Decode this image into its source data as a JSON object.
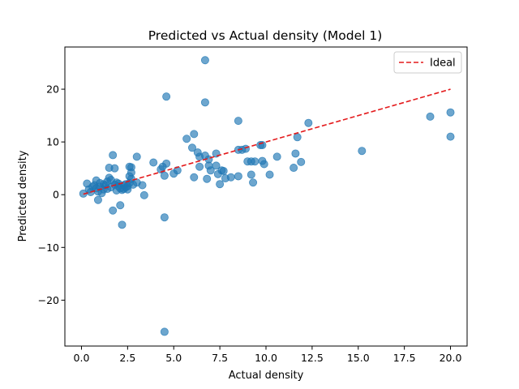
{
  "chart_data": {
    "type": "scatter",
    "title": "Predicted vs Actual density (Model 1)",
    "xlabel": "Actual density",
    "ylabel": "Predicted density",
    "xlim": [
      -0.9,
      20.9
    ],
    "ylim": [
      -28.7,
      28.0
    ],
    "xticks": [
      0.0,
      2.5,
      5.0,
      7.5,
      10.0,
      12.5,
      15.0,
      17.5,
      20.0
    ],
    "xtick_labels": [
      "0.0",
      "2.5",
      "5.0",
      "7.5",
      "10.0",
      "12.5",
      "15.0",
      "17.5",
      "20.0"
    ],
    "yticks": [
      -20,
      -10,
      0,
      10,
      20
    ],
    "ytick_labels": [
      "−20",
      "−10",
      "0",
      "10",
      "20"
    ],
    "grid": false,
    "legend": {
      "placement": "top-right",
      "entries": [
        {
          "label": "Ideal"
        }
      ]
    },
    "colors": {
      "points": "#1f77b4",
      "ideal": "#e41a1c"
    },
    "ideal_line": {
      "name": "Ideal",
      "x": [
        0.1,
        20.0
      ],
      "y": [
        0.1,
        20.0
      ]
    },
    "series": [
      {
        "points": [
          [
            0.1,
            0.2
          ],
          [
            0.3,
            2.1
          ],
          [
            0.4,
            1.0
          ],
          [
            0.5,
            0.5
          ],
          [
            0.6,
            1.5
          ],
          [
            0.7,
            1.8
          ],
          [
            0.8,
            2.7
          ],
          [
            0.8,
            1.2
          ],
          [
            0.9,
            0.6
          ],
          [
            0.9,
            -1.0
          ],
          [
            1.0,
            2.2
          ],
          [
            1.0,
            1.5
          ],
          [
            1.1,
            0.3
          ],
          [
            1.2,
            2.0
          ],
          [
            1.2,
            1.0
          ],
          [
            1.3,
            1.8
          ],
          [
            1.4,
            2.5
          ],
          [
            1.4,
            1.1
          ],
          [
            1.5,
            3.2
          ],
          [
            1.5,
            5.1
          ],
          [
            1.6,
            2.8
          ],
          [
            1.6,
            1.4
          ],
          [
            1.7,
            7.5
          ],
          [
            1.7,
            -3.0
          ],
          [
            1.8,
            5.0
          ],
          [
            1.8,
            1.9
          ],
          [
            1.9,
            2.3
          ],
          [
            1.9,
            0.8
          ],
          [
            2.0,
            1.6
          ],
          [
            2.0,
            2.1
          ],
          [
            2.1,
            -2.0
          ],
          [
            2.1,
            1.2
          ],
          [
            2.2,
            -5.7
          ],
          [
            2.2,
            0.9
          ],
          [
            2.3,
            1.8
          ],
          [
            2.3,
            1.1
          ],
          [
            2.4,
            1.4
          ],
          [
            2.4,
            2.0
          ],
          [
            2.5,
            1.6
          ],
          [
            2.5,
            1.0
          ],
          [
            2.6,
            5.3
          ],
          [
            2.6,
            3.5
          ],
          [
            2.6,
            2.2
          ],
          [
            2.7,
            5.2
          ],
          [
            2.7,
            4.2
          ],
          [
            2.7,
            3.0
          ],
          [
            2.8,
            1.9
          ],
          [
            3.0,
            7.2
          ],
          [
            3.0,
            2.3
          ],
          [
            3.3,
            1.8
          ],
          [
            3.4,
            -0.1
          ],
          [
            3.9,
            6.1
          ],
          [
            4.3,
            4.8
          ],
          [
            4.4,
            5.3
          ],
          [
            4.5,
            3.6
          ],
          [
            4.5,
            -4.3
          ],
          [
            4.6,
            18.6
          ],
          [
            4.6,
            5.9
          ],
          [
            4.5,
            -26.0
          ],
          [
            5.0,
            4.0
          ],
          [
            5.2,
            4.6
          ],
          [
            5.7,
            10.6
          ],
          [
            6.0,
            8.9
          ],
          [
            6.1,
            11.5
          ],
          [
            6.1,
            3.3
          ],
          [
            6.3,
            8.0
          ],
          [
            6.4,
            7.2
          ],
          [
            6.4,
            5.3
          ],
          [
            6.7,
            25.5
          ],
          [
            6.7,
            17.5
          ],
          [
            6.7,
            7.4
          ],
          [
            6.8,
            3.0
          ],
          [
            6.9,
            6.7
          ],
          [
            6.9,
            5.5
          ],
          [
            7.0,
            4.6
          ],
          [
            7.3,
            7.8
          ],
          [
            7.3,
            5.5
          ],
          [
            7.4,
            3.9
          ],
          [
            7.5,
            2.0
          ],
          [
            7.6,
            4.6
          ],
          [
            7.7,
            4.5
          ],
          [
            7.8,
            3.1
          ],
          [
            8.1,
            3.3
          ],
          [
            8.5,
            8.5
          ],
          [
            8.5,
            14.0
          ],
          [
            8.5,
            3.5
          ],
          [
            8.7,
            8.5
          ],
          [
            8.9,
            8.7
          ],
          [
            9.0,
            6.3
          ],
          [
            9.2,
            6.3
          ],
          [
            9.2,
            3.8
          ],
          [
            9.3,
            2.3
          ],
          [
            9.4,
            6.3
          ],
          [
            9.7,
            9.4
          ],
          [
            9.8,
            9.4
          ],
          [
            9.8,
            6.4
          ],
          [
            9.9,
            5.8
          ],
          [
            10.2,
            3.8
          ],
          [
            10.6,
            7.2
          ],
          [
            11.5,
            5.1
          ],
          [
            11.6,
            7.8
          ],
          [
            11.7,
            10.9
          ],
          [
            11.9,
            6.2
          ],
          [
            12.3,
            13.6
          ],
          [
            15.2,
            8.3
          ],
          [
            18.9,
            14.8
          ],
          [
            20.0,
            15.6
          ],
          [
            20.0,
            11.0
          ]
        ]
      }
    ]
  }
}
